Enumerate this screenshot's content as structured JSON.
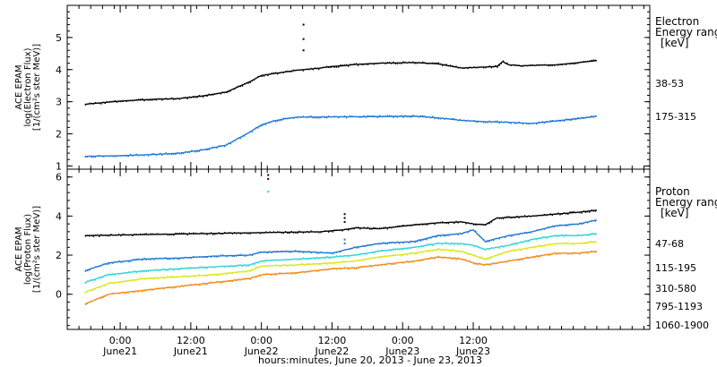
{
  "chart_data": [
    {
      "type": "scatter",
      "ylabel_lines": [
        "ACE EPAM",
        "log(Electron Flux)",
        "[1/(cm²s ster MeV)]"
      ],
      "ylim": [
        0.9,
        6.0
      ],
      "yticks": [
        1,
        2,
        3,
        4,
        5
      ],
      "legend_title_lines": [
        "Electron",
        "Energy range",
        "[keV]"
      ],
      "grid": false,
      "series": [
        {
          "name": "38-53",
          "color": "#000000",
          "x": [
            0,
            6,
            12,
            16,
            20,
            24,
            28,
            30,
            36,
            40,
            42,
            44,
            46,
            48,
            50,
            56,
            60,
            64,
            68,
            70,
            71,
            72,
            74,
            80,
            84,
            87
          ],
          "y": [
            2.92,
            3.02,
            3.08,
            3.1,
            3.18,
            3.3,
            3.62,
            3.82,
            3.98,
            4.05,
            4.1,
            4.12,
            4.16,
            4.18,
            4.2,
            4.22,
            4.18,
            4.05,
            4.08,
            4.1,
            4.25,
            4.15,
            4.12,
            4.15,
            4.22,
            4.28
          ]
        },
        {
          "name": "175-315",
          "color": "#1f78d1",
          "x": [
            0,
            6,
            12,
            16,
            20,
            24,
            26,
            28,
            30,
            32,
            34,
            36,
            44,
            50,
            56,
            60,
            64,
            68,
            72,
            76,
            80,
            84,
            87
          ],
          "y": [
            1.3,
            1.32,
            1.36,
            1.4,
            1.5,
            1.65,
            1.85,
            2.05,
            2.28,
            2.4,
            2.47,
            2.52,
            2.53,
            2.54,
            2.55,
            2.5,
            2.42,
            2.38,
            2.36,
            2.32,
            2.4,
            2.48,
            2.55
          ]
        }
      ],
      "outliers": [
        {
          "series": "38-53",
          "x": [
            37,
            37,
            37
          ],
          "y": [
            5.4,
            4.95,
            4.6
          ]
        }
      ]
    },
    {
      "type": "scatter",
      "ylabel_lines": [
        "ACE EPAM",
        "log(Proton Flux)",
        "[1/(cm²s ster MeV)]"
      ],
      "ylim": [
        -1.8,
        6.4
      ],
      "yticks": [
        0,
        2,
        4,
        6
      ],
      "legend_title_lines": [
        "Proton",
        "Energy range",
        "[keV]"
      ],
      "grid": false,
      "series": [
        {
          "name": "47-68",
          "color": "#000000",
          "x": [
            0,
            10,
            20,
            30,
            40,
            44,
            46,
            50,
            56,
            60,
            64,
            66,
            68,
            70,
            76,
            80,
            84,
            87
          ],
          "y": [
            3.0,
            3.05,
            3.1,
            3.15,
            3.2,
            3.3,
            3.4,
            3.35,
            3.55,
            3.65,
            3.7,
            3.6,
            3.55,
            3.9,
            4.0,
            4.1,
            4.2,
            4.3
          ]
        },
        {
          "name": "115-195",
          "color": "#1f78d1",
          "x": [
            0,
            4,
            10,
            16,
            22,
            28,
            30,
            36,
            42,
            46,
            50,
            56,
            60,
            64,
            66,
            68,
            72,
            76,
            80,
            84,
            87
          ],
          "y": [
            1.2,
            1.6,
            1.8,
            1.85,
            1.95,
            2.0,
            2.15,
            2.2,
            2.1,
            2.4,
            2.6,
            2.7,
            3.0,
            3.1,
            3.3,
            2.7,
            3.0,
            3.2,
            3.5,
            3.6,
            3.8
          ]
        },
        {
          "name": "310-580",
          "color": "#30d5d5",
          "x": [
            0,
            4,
            10,
            16,
            22,
            28,
            30,
            36,
            42,
            46,
            50,
            56,
            60,
            64,
            66,
            68,
            72,
            76,
            80,
            84,
            87
          ],
          "y": [
            0.6,
            1.0,
            1.2,
            1.3,
            1.4,
            1.5,
            1.7,
            1.8,
            1.9,
            2.0,
            2.2,
            2.4,
            2.6,
            2.6,
            2.5,
            2.3,
            2.5,
            2.8,
            3.0,
            3.0,
            3.1
          ]
        },
        {
          "name": "795-1193",
          "color": "#d8e81a",
          "x": [
            0,
            4,
            10,
            16,
            22,
            28,
            30,
            36,
            42,
            46,
            50,
            56,
            60,
            64,
            66,
            68,
            72,
            76,
            80,
            84,
            87
          ],
          "y": [
            0.1,
            0.55,
            0.8,
            0.9,
            1.0,
            1.2,
            1.45,
            1.5,
            1.6,
            1.7,
            1.9,
            2.1,
            2.3,
            2.2,
            2.0,
            1.8,
            2.2,
            2.4,
            2.6,
            2.6,
            2.7
          ]
        },
        {
          "name": "1060-1900",
          "color": "#f08c1c",
          "x": [
            0,
            4,
            10,
            16,
            22,
            28,
            30,
            36,
            42,
            46,
            50,
            56,
            60,
            64,
            66,
            68,
            72,
            76,
            80,
            84,
            87
          ],
          "y": [
            -0.5,
            0.0,
            0.2,
            0.4,
            0.6,
            0.8,
            1.0,
            1.1,
            1.3,
            1.35,
            1.5,
            1.7,
            1.9,
            1.8,
            1.6,
            1.5,
            1.7,
            1.9,
            2.1,
            2.1,
            2.2
          ]
        }
      ],
      "outliers": [
        {
          "series": "47-68",
          "x": [
            31,
            31
          ],
          "y": [
            6.1,
            5.9
          ]
        },
        {
          "series": "310-580",
          "x": [
            31
          ],
          "y": [
            5.25
          ]
        },
        {
          "series": "47-68",
          "x": [
            44,
            44,
            44
          ],
          "y": [
            4.1,
            3.9,
            3.7
          ]
        },
        {
          "series": "115-195",
          "x": [
            44,
            44
          ],
          "y": [
            2.6,
            2.8
          ]
        }
      ]
    }
  ],
  "x_axis": {
    "title": "hours:minutes, June 20, 2013 - June 23, 2013",
    "xlim": [
      -3,
      96
    ],
    "ticks": [
      {
        "x": 6,
        "time": "0:00",
        "date": "June21"
      },
      {
        "x": 18,
        "time": "12:00",
        "date": "June21"
      },
      {
        "x": 30,
        "time": "0:00",
        "date": "June22"
      },
      {
        "x": 42,
        "time": "12:00",
        "date": "June22"
      },
      {
        "x": 54,
        "time": "0:00",
        "date": "June23"
      },
      {
        "x": 66,
        "time": "12:00",
        "date": "June23"
      }
    ]
  }
}
